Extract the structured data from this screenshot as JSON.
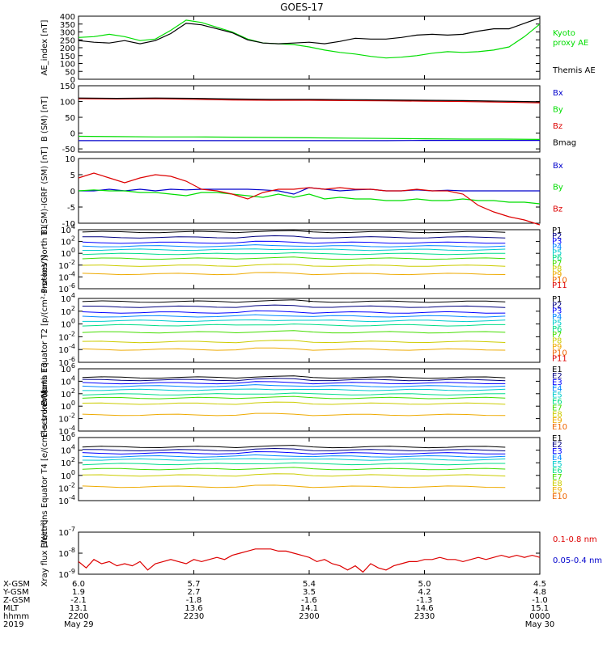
{
  "title": "GOES-17",
  "colors": {
    "black": "#000000",
    "green": "#00dd00",
    "blue": "#0000cc",
    "red": "#dd0000",
    "protons": [
      "#000000",
      "#000080",
      "#0000ff",
      "#0088ff",
      "#00cccc",
      "#00dd88",
      "#44dd00",
      "#cccc00",
      "#eeaa00",
      "#ee6600",
      "#dd0000"
    ],
    "electrons": [
      "#000000",
      "#000080",
      "#0000ff",
      "#0088ff",
      "#00cccc",
      "#00dd88",
      "#44dd00",
      "#cccc00",
      "#eeaa00",
      "#ee6600",
      "#dd0000"
    ]
  },
  "chart_data": [
    {
      "id": "ae",
      "type": "line",
      "ylabel": "AE_index [nT]",
      "ylim": [
        0,
        400
      ],
      "yticks": [
        0,
        50,
        100,
        150,
        200,
        250,
        300,
        350,
        400
      ],
      "ytick_labels": [
        "0",
        "50",
        "100",
        "150",
        "200",
        "250",
        "300",
        "350",
        "400"
      ],
      "x": [
        0,
        2,
        4,
        6,
        8,
        10,
        12,
        14,
        16,
        18,
        20,
        22,
        24,
        26,
        28,
        30,
        32,
        34,
        36,
        38,
        40,
        42,
        44,
        46,
        48,
        50,
        52,
        54,
        56,
        58,
        60
      ],
      "series": [
        {
          "name": "Kyoto proxy AE",
          "color": "green",
          "values": [
            265,
            270,
            285,
            270,
            245,
            255,
            310,
            375,
            360,
            330,
            300,
            255,
            230,
            225,
            220,
            205,
            185,
            170,
            160,
            145,
            135,
            140,
            150,
            165,
            175,
            170,
            175,
            185,
            205,
            270,
            350
          ]
        },
        {
          "name": "Themis AE",
          "color": "black",
          "values": [
            245,
            235,
            230,
            245,
            225,
            245,
            290,
            355,
            345,
            320,
            295,
            250,
            230,
            225,
            230,
            235,
            225,
            240,
            260,
            255,
            255,
            265,
            280,
            285,
            280,
            285,
            305,
            320,
            320,
            355,
            390
          ]
        }
      ],
      "legend": [
        {
          "text": "Kyoto",
          "color": "green"
        },
        {
          "text": "proxy AE",
          "color": "green"
        },
        {
          "text": "Themis AE",
          "color": "black"
        }
      ]
    },
    {
      "id": "bsm",
      "type": "line",
      "ylabel": "B (SM) [nT]",
      "ylim": [
        -60,
        150
      ],
      "yticks": [
        -50,
        0,
        50,
        100,
        150
      ],
      "ytick_labels": [
        "-50",
        "0",
        "50",
        "100",
        "150"
      ],
      "x": [
        0,
        5,
        10,
        15,
        20,
        25,
        30,
        35,
        40,
        45,
        50,
        55,
        60
      ],
      "series": [
        {
          "name": "Bx",
          "color": "blue",
          "values": [
            -24,
            -24,
            -24,
            -24,
            -24,
            -24,
            -24,
            -24,
            -24,
            -23,
            -23,
            -23,
            -23
          ]
        },
        {
          "name": "By",
          "color": "green",
          "values": [
            -10,
            -11,
            -12,
            -12,
            -13,
            -14,
            -15,
            -16,
            -17,
            -18,
            -19,
            -19,
            -20
          ]
        },
        {
          "name": "Bz",
          "color": "red",
          "values": [
            109,
            108,
            109,
            107,
            105,
            104,
            104,
            103,
            102,
            101,
            100,
            98,
            96
          ]
        },
        {
          "name": "Bmag",
          "color": "black",
          "values": [
            111,
            110,
            111,
            110,
            108,
            107,
            107,
            106,
            105,
            104,
            103,
            101,
            99
          ]
        }
      ],
      "legend": [
        {
          "text": "Bx",
          "color": "blue"
        },
        {
          "text": "By",
          "color": "green"
        },
        {
          "text": "Bz",
          "color": "red"
        },
        {
          "text": "Bmag",
          "color": "black"
        }
      ]
    },
    {
      "id": "bigrf",
      "type": "line",
      "ylabel": "B (SM)-IGRF (SM) [nT]",
      "ylim": [
        -10,
        10
      ],
      "yticks": [
        -10,
        -5,
        0,
        5,
        10
      ],
      "ytick_labels": [
        "-10",
        "-5",
        "0",
        "5",
        "10"
      ],
      "x": [
        0,
        2,
        4,
        6,
        8,
        10,
        12,
        14,
        16,
        18,
        20,
        22,
        24,
        26,
        28,
        30,
        32,
        34,
        36,
        38,
        40,
        42,
        44,
        46,
        48,
        50,
        52,
        54,
        56,
        58,
        60
      ],
      "series": [
        {
          "name": "Bx",
          "color": "blue",
          "values": [
            0,
            0,
            0.5,
            0,
            0.5,
            0,
            0.5,
            0.3,
            0.5,
            0.5,
            0.5,
            0.5,
            0.3,
            0,
            -1,
            1,
            0.5,
            0,
            0.3,
            0.5,
            0,
            0,
            0.3,
            0,
            0.2,
            0,
            0,
            0,
            0,
            0,
            0
          ]
        },
        {
          "name": "By",
          "color": "green",
          "values": [
            0,
            0.3,
            0,
            0,
            -0.5,
            -0.5,
            -1,
            -1.5,
            -0.5,
            -0.5,
            -1,
            -1.5,
            -2,
            -1,
            -2,
            -1,
            -2.5,
            -2,
            -2.5,
            -2.5,
            -3,
            -3,
            -2.5,
            -3,
            -3,
            -2.5,
            -3,
            -3,
            -3.5,
            -3.5,
            -4
          ]
        },
        {
          "name": "Bz",
          "color": "red",
          "values": [
            4,
            5.5,
            4,
            2.5,
            4,
            5,
            4.5,
            3,
            0.5,
            0,
            -1,
            -2.5,
            -0.5,
            0.5,
            0.5,
            1,
            0.5,
            1,
            0.5,
            0.5,
            0,
            0,
            0.5,
            0,
            0,
            -1,
            -4.5,
            -6.5,
            -8,
            -9,
            -10.5
          ]
        }
      ],
      "legend": [
        {
          "text": "Bx",
          "color": "blue"
        },
        {
          "text": "By",
          "color": "green"
        },
        {
          "text": "Bz",
          "color": "red"
        }
      ]
    },
    {
      "id": "protons_t1",
      "type": "line",
      "log": true,
      "ylabel": "Protons North T1",
      "ylim_exp": [
        -6,
        4
      ],
      "ytick_exps": [
        -6,
        -4,
        -2,
        0,
        2,
        4
      ],
      "channels": [
        "P1",
        "P2",
        "P3",
        "P4",
        "P5",
        "P6",
        "P7",
        "P8",
        "P9",
        "P10",
        "P11"
      ],
      "channel_log_values": [
        3.6,
        2.7,
        1.8,
        1.2,
        0.6,
        -0.1,
        -0.9,
        -2.1,
        -3.5,
        null,
        null
      ]
    },
    {
      "id": "protons_t2",
      "type": "line",
      "log": true,
      "ylabel": "Protons Equator T2 [p/(cm²-s-sr-keV)]",
      "ylim_exp": [
        -6,
        4
      ],
      "ytick_exps": [
        -6,
        -4,
        -2,
        0,
        2,
        4
      ],
      "channels": [
        "P1",
        "P2",
        "P3",
        "P4",
        "P5",
        "P6",
        "P7",
        "P8",
        "P9",
        "P10",
        "P11"
      ],
      "channel_log_values": [
        3.5,
        2.7,
        1.8,
        1.2,
        0.5,
        -0.2,
        -1.3,
        -2.8,
        -4.0,
        null,
        null
      ]
    },
    {
      "id": "electrons_t3",
      "type": "line",
      "log": true,
      "ylabel": "Electrons North T3",
      "ylim_exp": [
        -4,
        6
      ],
      "ytick_exps": [
        -4,
        -2,
        0,
        2,
        4,
        6
      ],
      "channels": [
        "E1",
        "E2",
        "E3",
        "E4",
        "E5",
        "E6",
        "E7",
        "E8",
        "E9",
        "E10"
      ],
      "channel_log_values": [
        4.6,
        4.2,
        3.7,
        3.2,
        2.6,
        1.9,
        1.3,
        0.4,
        -1.4,
        null
      ]
    },
    {
      "id": "electrons_t4",
      "type": "line",
      "log": true,
      "ylabel": "Electrons Equator T4 [e/(cm²-s-sr-keV)]",
      "ylim_exp": [
        -4,
        6
      ],
      "ytick_exps": [
        -4,
        -2,
        0,
        2,
        4,
        6
      ],
      "channels": [
        "E1",
        "E2",
        "E3",
        "E4",
        "E5",
        "E6",
        "E7",
        "E8",
        "E9",
        "E10"
      ],
      "channel_log_values": [
        4.5,
        4.0,
        3.5,
        3.0,
        2.5,
        1.8,
        1.0,
        0.0,
        -1.8,
        null
      ]
    },
    {
      "id": "xray",
      "type": "line",
      "log": true,
      "ylabel": "Xray flux [W/m²]",
      "ylim_exp": [
        -9,
        -7
      ],
      "ytick_exps": [
        -9,
        -8,
        -7
      ],
      "x": [
        0,
        1,
        2,
        3,
        4,
        5,
        6,
        7,
        8,
        9,
        10,
        11,
        12,
        13,
        14,
        15,
        16,
        17,
        18,
        19,
        20,
        21,
        22,
        23,
        24,
        25,
        26,
        27,
        28,
        29,
        30,
        31,
        32,
        33,
        34,
        35,
        36,
        37,
        38,
        39,
        40,
        41,
        42,
        43,
        44,
        45,
        46,
        47,
        48,
        49,
        50,
        51,
        52,
        53,
        54,
        55,
        56,
        57,
        58,
        59,
        60
      ],
      "series": [
        {
          "name": "0.1-0.8 nm",
          "color": "red",
          "values": [
            -8.4,
            -8.7,
            -8.3,
            -8.5,
            -8.4,
            -8.6,
            -8.5,
            -8.6,
            -8.4,
            -8.8,
            -8.5,
            -8.4,
            -8.3,
            -8.4,
            -8.5,
            -8.3,
            -8.4,
            -8.3,
            -8.2,
            -8.3,
            -8.1,
            -8.0,
            -7.9,
            -7.8,
            -7.8,
            -7.8,
            -7.9,
            -7.9,
            -8.0,
            -8.1,
            -8.2,
            -8.4,
            -8.3,
            -8.5,
            -8.6,
            -8.8,
            -8.6,
            -8.9,
            -8.5,
            -8.7,
            -8.8,
            -8.6,
            -8.5,
            -8.4,
            -8.4,
            -8.3,
            -8.3,
            -8.2,
            -8.3,
            -8.3,
            -8.4,
            -8.3,
            -8.2,
            -8.3,
            -8.2,
            -8.1,
            -8.2,
            -8.1,
            -8.2,
            -8.1,
            -8.2
          ]
        }
      ],
      "legend": [
        {
          "text": "0.1-0.8 nm",
          "color": "red"
        },
        {
          "text": "0.05-0.4 nm",
          "color": "blue"
        }
      ]
    }
  ],
  "ephemeris": {
    "labels": [
      "X-GSM",
      "Y-GSM",
      "Z-GSM",
      "MLT",
      "hhmm",
      "2019"
    ],
    "columns": [
      {
        "values": [
          "6.0",
          "1.9",
          "-2.1",
          "13.1",
          "2200",
          "May 29"
        ]
      },
      {
        "values": [
          "5.7",
          "2.7",
          "-1.8",
          "13.6",
          "2230",
          ""
        ]
      },
      {
        "values": [
          "5.4",
          "3.5",
          "-1.6",
          "14.1",
          "2300",
          ""
        ]
      },
      {
        "values": [
          "5.0",
          "4.2",
          "-1.3",
          "14.6",
          "2330",
          ""
        ]
      },
      {
        "values": [
          "4.5",
          "4.8",
          "-1.0",
          "15.1",
          "0000",
          "May 30"
        ]
      }
    ]
  }
}
